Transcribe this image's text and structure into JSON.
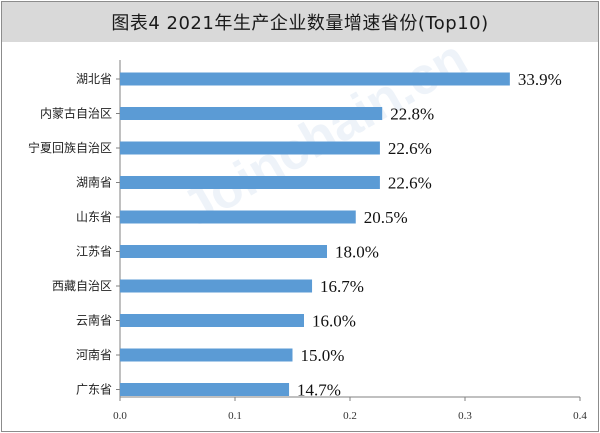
{
  "title": "图表4 2021年生产企业数量增速省份(Top10)",
  "watermark": "Joinchain.cn",
  "colors": {
    "bar": "#5b9bd5",
    "axis": "#808080",
    "title_bg": "#d9d9d9"
  },
  "chart_data": {
    "type": "bar",
    "orientation": "horizontal",
    "categories": [
      "湖北省",
      "内蒙古自治区",
      "宁夏回族自治区",
      "湖南省",
      "山东省",
      "江苏省",
      "西藏自治区",
      "云南省",
      "河南省",
      "广东省"
    ],
    "values": [
      0.339,
      0.228,
      0.226,
      0.226,
      0.205,
      0.18,
      0.167,
      0.16,
      0.15,
      0.147
    ],
    "data_labels": [
      "33.9%",
      "22.8%",
      "22.6%",
      "22.6%",
      "20.5%",
      "18.0%",
      "16.7%",
      "16.0%",
      "15.0%",
      "14.7%"
    ],
    "xlim": [
      0,
      0.4
    ],
    "xticks": [
      "0.0",
      "0.1",
      "0.2",
      "0.3",
      "0.4"
    ],
    "grid": false,
    "legend": "none"
  }
}
